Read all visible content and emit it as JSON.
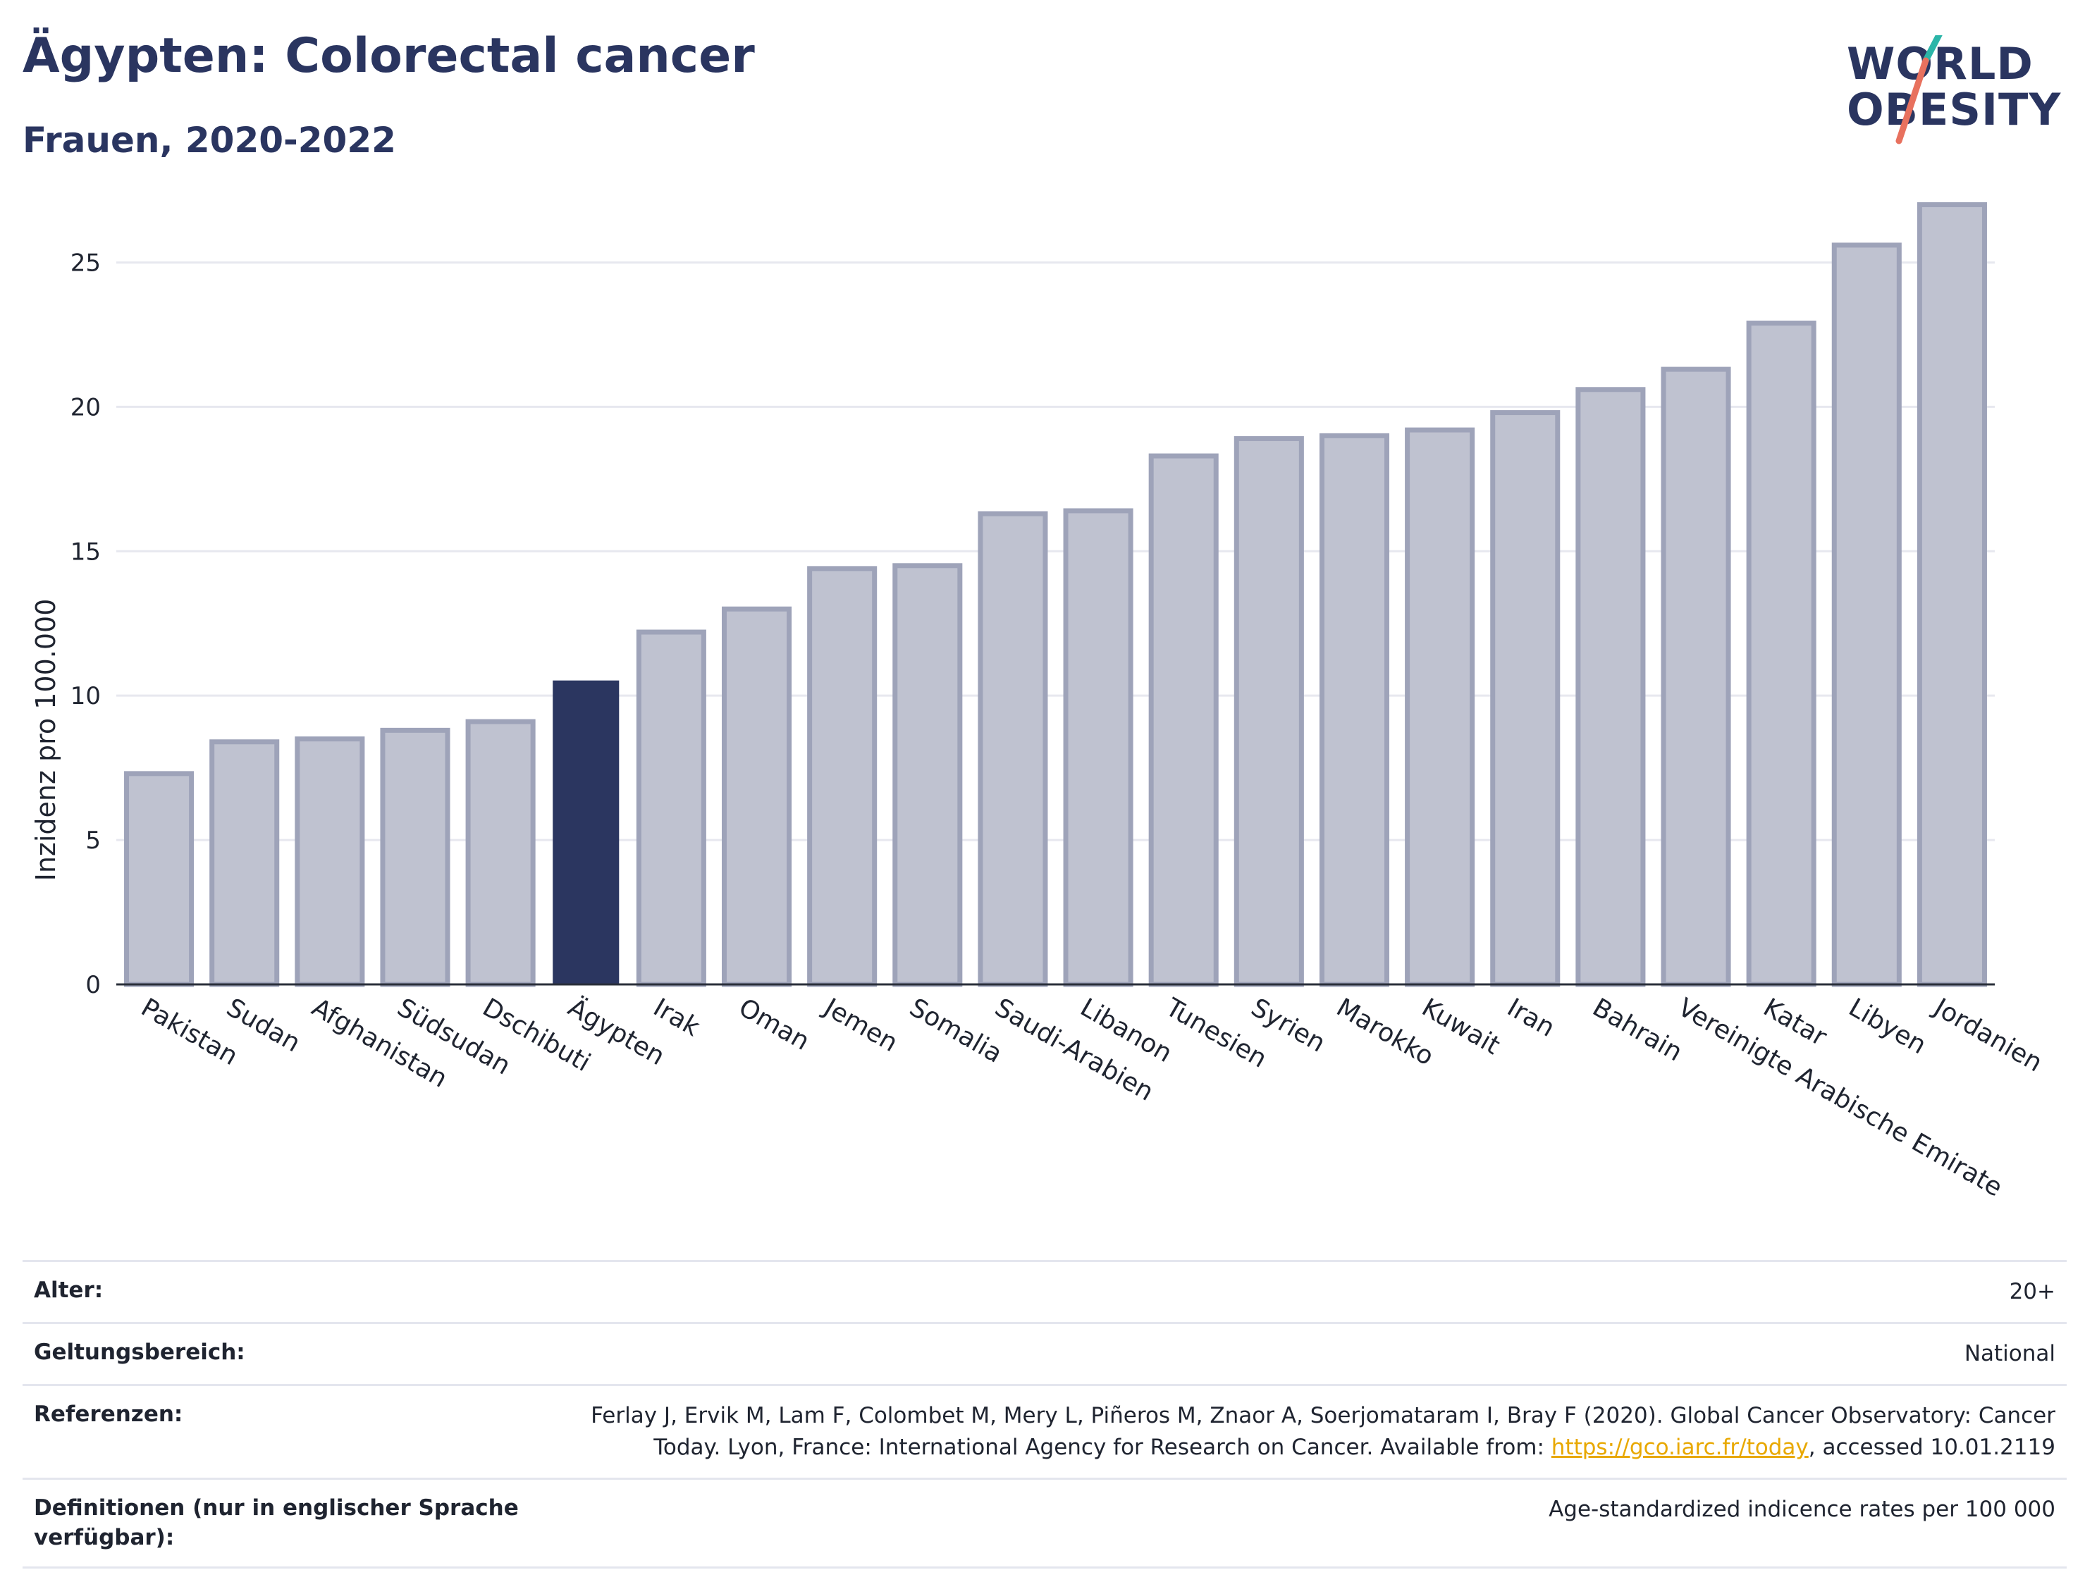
{
  "header": {
    "title": "Ägypten: Colorectal cancer",
    "subtitle": "Frauen, 2020-2022"
  },
  "logo": {
    "line1": "WORLD",
    "line2": "OBESITY"
  },
  "colors": {
    "highlight": "#2b3660",
    "bar": "#bfc2d0",
    "bar_edge": "#9ea3b9",
    "grid": "#e7e8ef",
    "link": "#e8a800"
  },
  "chart_data": {
    "type": "bar",
    "ylabel": "Inzidenz pro 100.000",
    "ylim": [
      0,
      27.5
    ],
    "yticks": [
      0,
      5,
      10,
      15,
      20,
      25
    ],
    "grid": true,
    "highlight": "Ägypten",
    "categories": [
      "Pakistan",
      "Sudan",
      "Afghanistan",
      "Südsudan",
      "Dschibuti",
      "Ägypten",
      "Irak",
      "Oman",
      "Jemen",
      "Somalia",
      "Saudi-Arabien",
      "Libanon",
      "Tunesien",
      "Syrien",
      "Marokko",
      "Kuwait",
      "Iran",
      "Bahrain",
      "Vereinigte Arabische Emirate",
      "Katar",
      "Libyen",
      "Jordanien"
    ],
    "values": [
      7.3,
      8.4,
      8.5,
      8.8,
      9.1,
      10.5,
      12.2,
      13.0,
      14.4,
      14.5,
      16.3,
      16.4,
      18.3,
      18.9,
      19.0,
      19.2,
      19.8,
      20.6,
      21.3,
      22.9,
      25.6,
      27.0
    ]
  },
  "meta": {
    "age_label": "Alter:",
    "age_value": "20+",
    "scope_label": "Geltungsbereich:",
    "scope_value": "National",
    "refs_label": "Referenzen:",
    "refs_text": "Ferlay J, Ervik M, Lam F, Colombet M, Mery L, Piñeros M, Znaor A, Soerjomataram I, Bray F (2020). Global Cancer Observatory: Cancer Today. Lyon, France: International Agency for Research on Cancer. Available from: ",
    "refs_link": "https://gco.iarc.fr/today",
    "refs_tail": ", accessed 10.01.2119",
    "defs_label": "Definitionen (nur in englischer Sprache verfügbar):",
    "defs_value": "Age-standardized indicence rates per 100 000"
  }
}
